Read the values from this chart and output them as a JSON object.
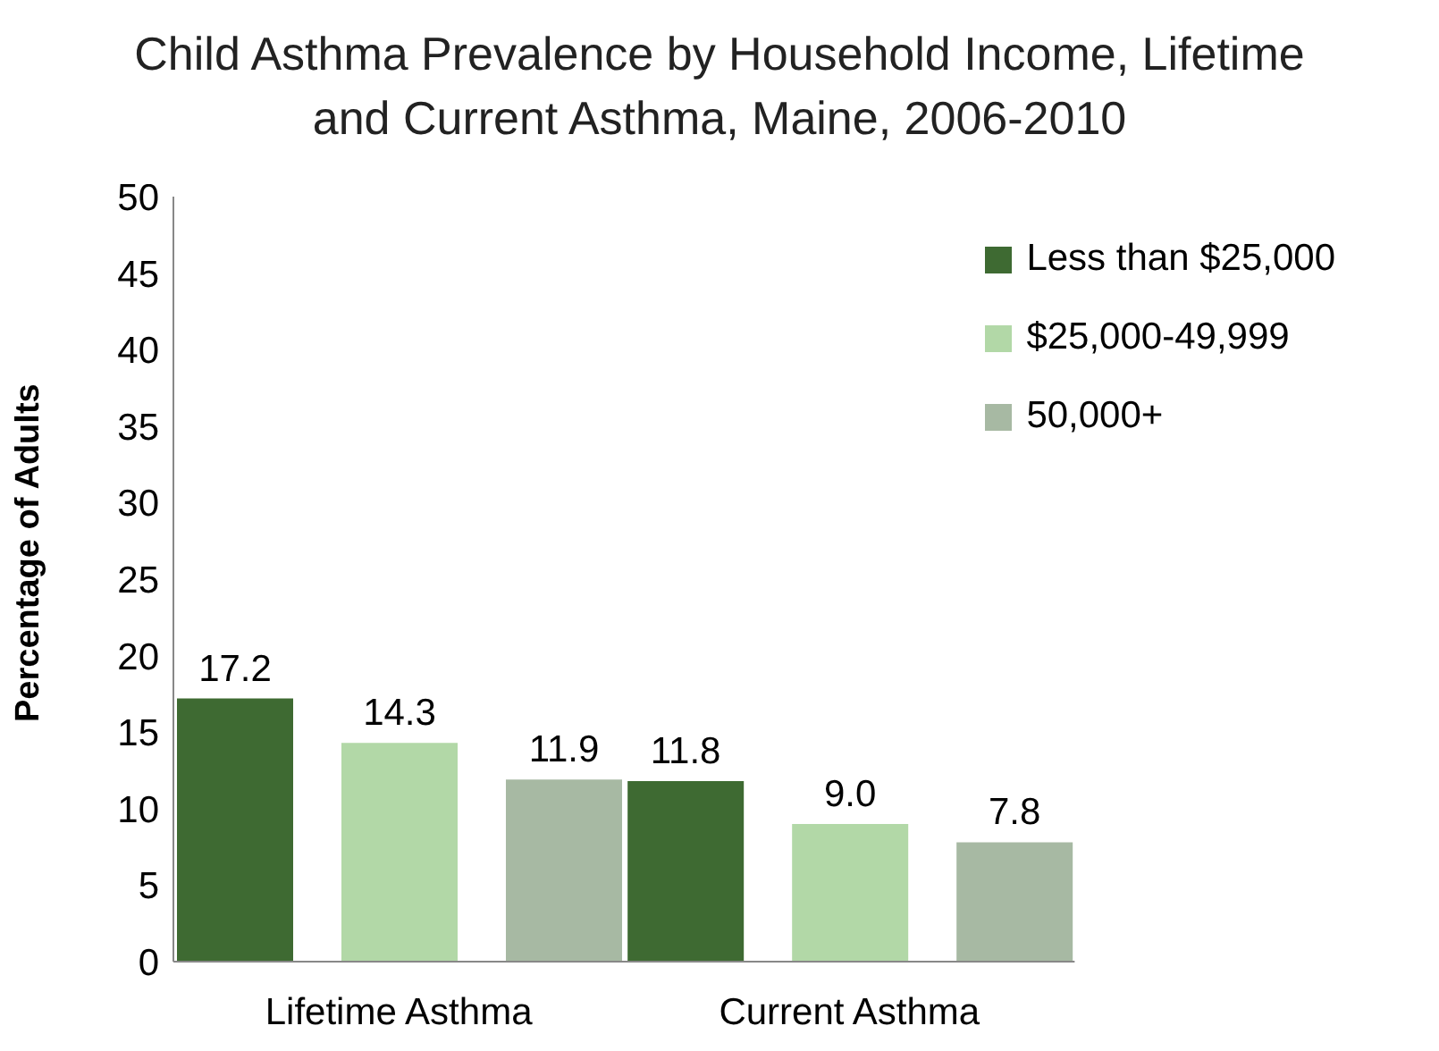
{
  "chart_data": {
    "type": "bar",
    "title": "Child Asthma Prevalence by Household Income, Lifetime and Current Asthma, Maine, 2006-2010",
    "ylabel": "Percentage of Adults",
    "categories": [
      "Lifetime Asthma",
      "Current Asthma"
    ],
    "series": [
      {
        "name": "Less than $25,000",
        "color": "#3e6a32",
        "values": [
          17.2,
          11.8
        ],
        "value_labels": [
          "17.2",
          "11.8"
        ]
      },
      {
        "name": "$25,000-49,999",
        "color": "#b2d8a7",
        "values": [
          14.3,
          9.0
        ],
        "value_labels": [
          "14.3",
          "9.0"
        ]
      },
      {
        "name": "50,000+",
        "color": "#a7b9a3",
        "values": [
          11.9,
          7.8
        ],
        "value_labels": [
          "11.9",
          "7.8"
        ]
      }
    ],
    "ylim": [
      0,
      50
    ],
    "yticks": [
      0,
      5,
      10,
      15,
      20,
      25,
      30,
      35,
      40,
      45,
      50
    ],
    "grid": false,
    "legend": "top right"
  }
}
